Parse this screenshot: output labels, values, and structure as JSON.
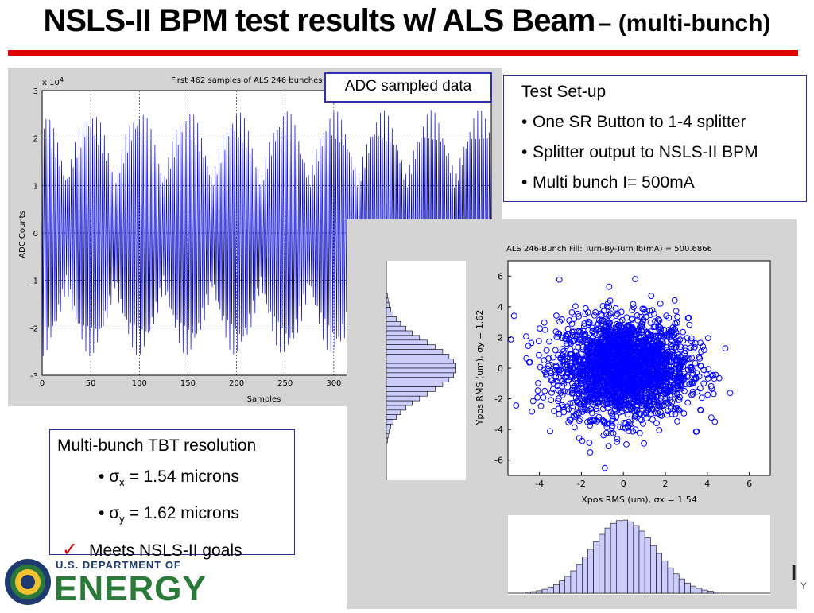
{
  "slide": {
    "title_main": "NSLS-II BPM test results w/ ALS Beam",
    "title_sub": "– (multi-bunch)"
  },
  "adc_label": "ADC sampled data",
  "setup": {
    "heading": "Test Set-up",
    "items": [
      "One SR Button to 1-4 splitter",
      "Splitter output to NSLS-II BPM",
      "Multi bunch  I= 500mA"
    ]
  },
  "tbt": {
    "heading": "Multi-bunch  TBT resolution",
    "sigma_x_sub": "x",
    "sigma_x_value": " = 1.54 microns",
    "sigma_y_sub": "y",
    "sigma_y_value": " = 1.62 microns",
    "check": "✓",
    "goal": "Meets NSLS-II goals"
  },
  "logo": {
    "line1": "U.S. DEPARTMENT OF",
    "line2": "ENERGY"
  },
  "corner": {
    "text1": "I",
    "text2": "Y"
  },
  "chart_data": [
    {
      "type": "line",
      "title": "First 462 samples of ALS 246 bunches",
      "xlabel": "Samples",
      "ylabel": "ADC Counts",
      "y_multiplier": "x 10",
      "y_exponent": "4",
      "xlim": [
        0,
        462
      ],
      "ylim": [
        -3,
        3
      ],
      "xticks": [
        "0",
        "50",
        "100",
        "150",
        "200",
        "250",
        "300"
      ],
      "yticks": [
        "3",
        "2",
        "1",
        "0",
        "-1",
        "-2",
        "-3"
      ],
      "grid": true,
      "signal": {
        "amplitude": 2.6,
        "sample_period": 2,
        "envelope_period": 50,
        "min_envelope": 0.45
      }
    },
    {
      "type": "scatter",
      "title": "ALS 246-Bunch Fill: Turn-By-Turn  Ib(mA) =  500.6866",
      "xlabel": "Xpos RMS (um),  σx = 1.54",
      "ylabel": "Ypos RMS (um),  σy = 1.62",
      "xlim": [
        -5.5,
        7
      ],
      "ylim": [
        -7,
        7
      ],
      "xticks": [
        "-4",
        "-2",
        "0",
        "2",
        "4",
        "6"
      ],
      "yticks": [
        "6",
        "4",
        "2",
        "0",
        "-2",
        "-4",
        "-6"
      ],
      "sigma_x": 1.54,
      "sigma_y": 1.62,
      "mean_x": 0,
      "mean_y": 0,
      "marker": "circle",
      "color": "#0000ff"
    }
  ]
}
